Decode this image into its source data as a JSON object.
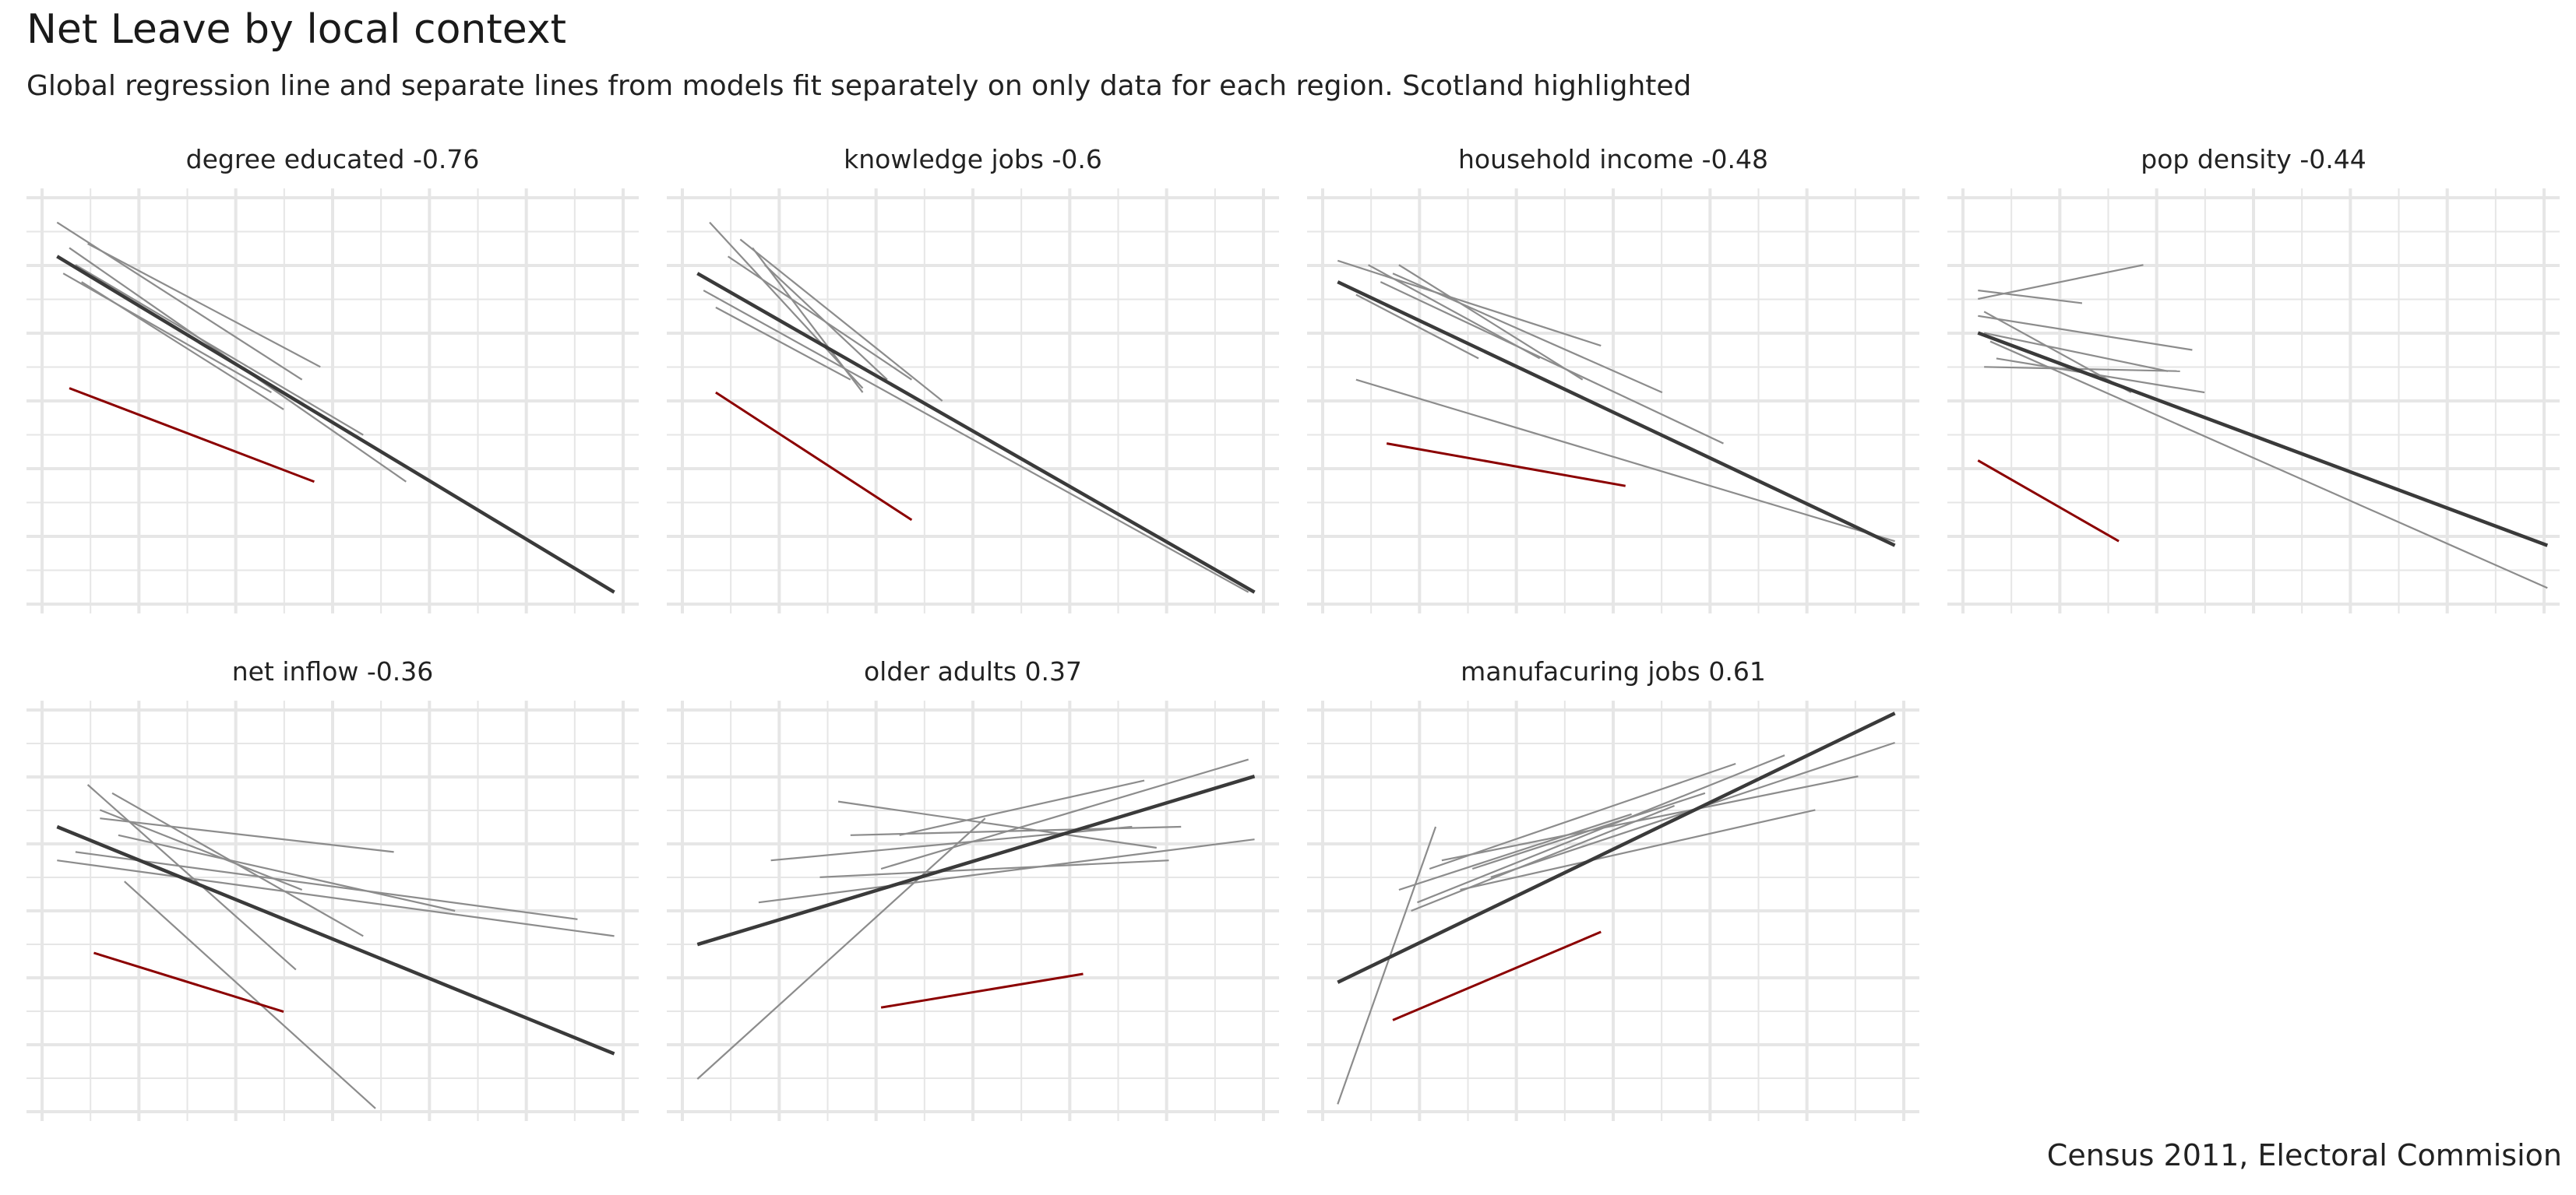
{
  "title": "Net Leave by local context",
  "subtitle": "Global regression line and separate lines from models fit separately on only data for each region. Scotland highlighted",
  "caption": "Census 2011, Electoral Commision",
  "colors": {
    "global_line": "#3a3a3a",
    "region_lines": "#8c8c8c",
    "scotland_line": "#8b0000",
    "grid": "#e6e6e6",
    "background": "#ffffff"
  },
  "grid": true,
  "chart_data": [
    {
      "type": "line",
      "title": "degree educated -0.76",
      "xlim": [
        0,
        100
      ],
      "ylim": [
        0,
        100
      ],
      "global": [
        [
          5,
          84
        ],
        [
          96,
          5
        ]
      ],
      "scotland": [
        [
          7,
          53
        ],
        [
          47,
          31
        ]
      ],
      "regions": [
        [
          [
            5,
            92
          ],
          [
            45,
            55
          ]
        ],
        [
          [
            6,
            80
          ],
          [
            40,
            52
          ]
        ],
        [
          [
            8,
            82
          ],
          [
            55,
            42
          ]
        ],
        [
          [
            7,
            86
          ],
          [
            62,
            31
          ]
        ],
        [
          [
            10,
            87
          ],
          [
            48,
            58
          ]
        ],
        [
          [
            9,
            78
          ],
          [
            42,
            48
          ]
        ]
      ]
    },
    {
      "type": "line",
      "title": "knowledge jobs -0.6",
      "xlim": [
        0,
        100
      ],
      "ylim": [
        0,
        100
      ],
      "global": [
        [
          5,
          80
        ],
        [
          96,
          5
        ]
      ],
      "scotland": [
        [
          8,
          52
        ],
        [
          40,
          22
        ]
      ],
      "regions": [
        [
          [
            7,
            92
          ],
          [
            32,
            53
          ]
        ],
        [
          [
            12,
            88
          ],
          [
            45,
            50
          ]
        ],
        [
          [
            10,
            84
          ],
          [
            40,
            55
          ]
        ],
        [
          [
            14,
            86
          ],
          [
            32,
            52
          ]
        ],
        [
          [
            8,
            72
          ],
          [
            30,
            55
          ]
        ],
        [
          [
            6,
            76
          ],
          [
            95,
            5
          ]
        ],
        [
          [
            16,
            82
          ],
          [
            36,
            55
          ]
        ]
      ]
    },
    {
      "type": "line",
      "title": "household income -0.48",
      "xlim": [
        0,
        100
      ],
      "ylim": [
        0,
        100
      ],
      "global": [
        [
          5,
          78
        ],
        [
          96,
          16
        ]
      ],
      "scotland": [
        [
          13,
          40
        ],
        [
          52,
          30
        ]
      ],
      "regions": [
        [
          [
            5,
            83
          ],
          [
            48,
            63
          ]
        ],
        [
          [
            8,
            75
          ],
          [
            28,
            60
          ]
        ],
        [
          [
            10,
            82
          ],
          [
            38,
            60
          ]
        ],
        [
          [
            14,
            80
          ],
          [
            58,
            52
          ]
        ],
        [
          [
            12,
            78
          ],
          [
            68,
            40
          ]
        ],
        [
          [
            8,
            55
          ],
          [
            96,
            17
          ]
        ],
        [
          [
            15,
            82
          ],
          [
            45,
            55
          ]
        ]
      ]
    },
    {
      "type": "line",
      "title": "pop density -0.44",
      "xlim": [
        0,
        100
      ],
      "ylim": [
        0,
        100
      ],
      "global": [
        [
          5,
          66
        ],
        [
          98,
          16
        ]
      ],
      "scotland": [
        [
          5,
          36
        ],
        [
          28,
          17
        ]
      ],
      "regions": [
        [
          [
            5,
            74
          ],
          [
            32,
            82
          ]
        ],
        [
          [
            5,
            70
          ],
          [
            40,
            62
          ]
        ],
        [
          [
            6,
            66
          ],
          [
            36,
            57
          ]
        ],
        [
          [
            5,
            76
          ],
          [
            22,
            73
          ]
        ],
        [
          [
            6,
            58
          ],
          [
            38,
            57
          ]
        ],
        [
          [
            6,
            71
          ],
          [
            30,
            52
          ]
        ],
        [
          [
            7,
            64
          ],
          [
            98,
            6
          ]
        ],
        [
          [
            8,
            60
          ],
          [
            42,
            52
          ]
        ]
      ]
    },
    {
      "type": "line",
      "title": "net inflow -0.36",
      "xlim": [
        0,
        100
      ],
      "ylim": [
        0,
        100
      ],
      "global": [
        [
          5,
          70
        ],
        [
          96,
          16
        ]
      ],
      "scotland": [
        [
          11,
          40
        ],
        [
          42,
          26
        ]
      ],
      "regions": [
        [
          [
            10,
            80
          ],
          [
            44,
            36
          ]
        ],
        [
          [
            14,
            78
          ],
          [
            55,
            44
          ]
        ],
        [
          [
            12,
            72
          ],
          [
            60,
            64
          ]
        ],
        [
          [
            5,
            62
          ],
          [
            96,
            44
          ]
        ],
        [
          [
            8,
            64
          ],
          [
            90,
            48
          ]
        ],
        [
          [
            16,
            57
          ],
          [
            57,
            3
          ]
        ],
        [
          [
            15,
            68
          ],
          [
            70,
            50
          ]
        ],
        [
          [
            12,
            74
          ],
          [
            45,
            55
          ]
        ]
      ]
    },
    {
      "type": "line",
      "title": "older adults 0.37",
      "xlim": [
        0,
        100
      ],
      "ylim": [
        0,
        100
      ],
      "global": [
        [
          5,
          42
        ],
        [
          96,
          82
        ]
      ],
      "scotland": [
        [
          35,
          27
        ],
        [
          68,
          35
        ]
      ],
      "regions": [
        [
          [
            5,
            10
          ],
          [
            52,
            72
          ]
        ],
        [
          [
            17,
            62
          ],
          [
            76,
            70
          ]
        ],
        [
          [
            15,
            52
          ],
          [
            96,
            67
          ]
        ],
        [
          [
            28,
            76
          ],
          [
            80,
            65
          ]
        ],
        [
          [
            30,
            68
          ],
          [
            84,
            70
          ]
        ],
        [
          [
            35,
            60
          ],
          [
            95,
            86
          ]
        ],
        [
          [
            38,
            68
          ],
          [
            78,
            81
          ]
        ],
        [
          [
            25,
            58
          ],
          [
            82,
            62
          ]
        ]
      ]
    },
    {
      "type": "line",
      "title": "manufacuring jobs 0.61",
      "xlim": [
        0,
        100
      ],
      "ylim": [
        0,
        100
      ],
      "global": [
        [
          5,
          33
        ],
        [
          96,
          97
        ]
      ],
      "scotland": [
        [
          14,
          24
        ],
        [
          48,
          45
        ]
      ],
      "regions": [
        [
          [
            5,
            4
          ],
          [
            21,
            70
          ]
        ],
        [
          [
            15,
            55
          ],
          [
            53,
            73
          ]
        ],
        [
          [
            18,
            52
          ],
          [
            78,
            87
          ]
        ],
        [
          [
            20,
            60
          ],
          [
            70,
            85
          ]
        ],
        [
          [
            22,
            62
          ],
          [
            90,
            82
          ]
        ],
        [
          [
            25,
            55
          ],
          [
            83,
            74
          ]
        ],
        [
          [
            27,
            60
          ],
          [
            65,
            78
          ]
        ],
        [
          [
            30,
            58
          ],
          [
            96,
            90
          ]
        ],
        [
          [
            17,
            50
          ],
          [
            60,
            75
          ]
        ]
      ]
    }
  ]
}
